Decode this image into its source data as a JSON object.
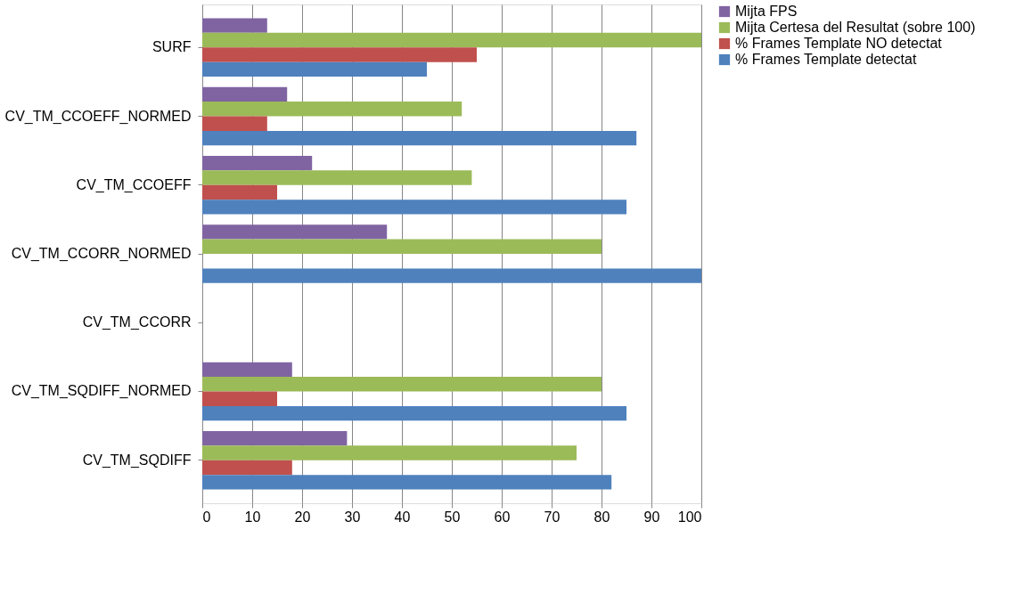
{
  "chart_data": {
    "type": "bar",
    "orientation": "horizontal",
    "categories": [
      "SURF",
      "CV_TM_CCOEFF_NORMED",
      "CV_TM_CCOEFF",
      "CV_TM_CCORR_NORMED",
      "CV_TM_CCORR",
      "CV_TM_SQDIFF_NORMED",
      "CV_TM_SQDIFF"
    ],
    "series": [
      {
        "name": "Mijta  FPS",
        "color": "#8064a2",
        "values": [
          13,
          17,
          22,
          37,
          null,
          18,
          29
        ]
      },
      {
        "name": "Mijta Certesa del Resultat (sobre 100)",
        "color": "#9bbb59",
        "values": [
          100,
          52,
          54,
          80,
          null,
          80,
          75
        ]
      },
      {
        "name": "% Frames Template NO detectat",
        "color": "#c0504d",
        "values": [
          55,
          13,
          15,
          0,
          null,
          15,
          18
        ]
      },
      {
        "name": "% Frames Template detectat",
        "color": "#4f81bd",
        "values": [
          45,
          87,
          85,
          100,
          null,
          85,
          82
        ]
      }
    ],
    "xlim": [
      0,
      100
    ],
    "xticks": [
      0,
      10,
      20,
      30,
      40,
      50,
      60,
      70,
      80,
      90,
      100
    ],
    "grid": "x",
    "legend": "top right"
  }
}
